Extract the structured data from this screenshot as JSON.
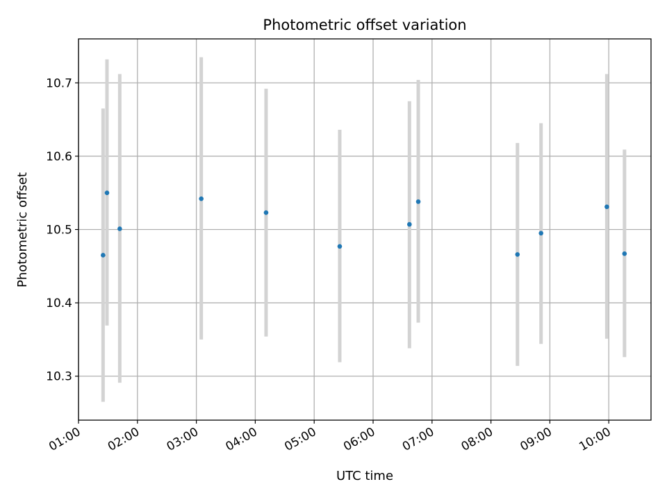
{
  "chart_data": {
    "type": "scatter",
    "title": "Photometric offset variation",
    "xlabel": "UTC time",
    "ylabel": "Photometric offset",
    "xlim": [
      "01:00",
      "10:43"
    ],
    "ylim": [
      10.24,
      10.76
    ],
    "grid": true,
    "x_ticks": [
      "01:00",
      "02:00",
      "03:00",
      "04:00",
      "05:00",
      "06:00",
      "07:00",
      "08:00",
      "09:00",
      "10:00"
    ],
    "y_ticks": [
      10.3,
      10.4,
      10.5,
      10.6,
      10.7
    ],
    "y_tick_labels": [
      "10.3",
      "10.4",
      "10.5",
      "10.6",
      "10.7"
    ],
    "series": [
      {
        "marker_color": "#1f77b4",
        "errorbar_color": "#d3d3d3",
        "points": [
          {
            "t": "01:25",
            "y": 10.465,
            "ylo": 10.265,
            "yhi": 10.665
          },
          {
            "t": "01:29",
            "y": 10.55,
            "ylo": 10.369,
            "yhi": 10.732
          },
          {
            "t": "01:42",
            "y": 10.501,
            "ylo": 10.291,
            "yhi": 10.712
          },
          {
            "t": "03:05",
            "y": 10.542,
            "ylo": 10.35,
            "yhi": 10.735
          },
          {
            "t": "04:11",
            "y": 10.523,
            "ylo": 10.354,
            "yhi": 10.692
          },
          {
            "t": "05:26",
            "y": 10.477,
            "ylo": 10.319,
            "yhi": 10.636
          },
          {
            "t": "06:37",
            "y": 10.507,
            "ylo": 10.338,
            "yhi": 10.675
          },
          {
            "t": "06:46",
            "y": 10.538,
            "ylo": 10.373,
            "yhi": 10.704
          },
          {
            "t": "08:27",
            "y": 10.466,
            "ylo": 10.314,
            "yhi": 10.618
          },
          {
            "t": "08:51",
            "y": 10.495,
            "ylo": 10.344,
            "yhi": 10.645
          },
          {
            "t": "09:58",
            "y": 10.531,
            "ylo": 10.351,
            "yhi": 10.712
          },
          {
            "t": "10:16",
            "y": 10.467,
            "ylo": 10.326,
            "yhi": 10.609
          }
        ]
      }
    ]
  }
}
